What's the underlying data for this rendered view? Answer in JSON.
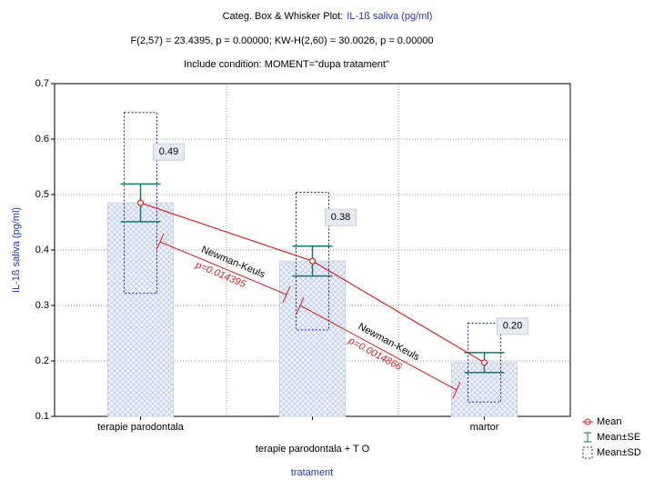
{
  "chart_data": {
    "type": "box",
    "title": [
      "Categ. Box & Whisker Plot:",
      "IL-1ß saliva (pg/ml)"
    ],
    "subtitle": [
      "F(2,57) = 23.4395, p = 0.00000; KW-H(2,60) = 30.0026, p = 0.00000",
      "Include condition: MOMENT=\"dupa tratament\""
    ],
    "y_label": "IL-1ß saliva (pg/ml)",
    "x_label": "tratament",
    "categories": [
      "terapie parodontala",
      "terapie parodontala + T O",
      "martor"
    ],
    "series": [
      {
        "name": "Mean",
        "color": "#dd2222",
        "values": [
          0.485,
          0.38,
          0.197
        ],
        "value_labels": [
          "0.49",
          "0.38",
          "0.20"
        ]
      },
      {
        "name": "Mean±SE",
        "color": "#117766",
        "values": [
          0.034,
          0.027,
          0.018
        ]
      },
      {
        "name": "Mean±SD",
        "color": "#1a2a99",
        "values": [
          0.163,
          0.124,
          0.071
        ]
      }
    ],
    "annotations": [
      {
        "text": "Newman-Keuls",
        "p": "p=0.014395"
      },
      {
        "text": "Newman-Keuls",
        "p": "p=0.0014866"
      }
    ],
    "ylim": [
      0.1,
      0.7
    ],
    "yticks": [
      0.1,
      0.2,
      0.3,
      0.4,
      0.5,
      0.6,
      0.7
    ],
    "grid": true
  }
}
